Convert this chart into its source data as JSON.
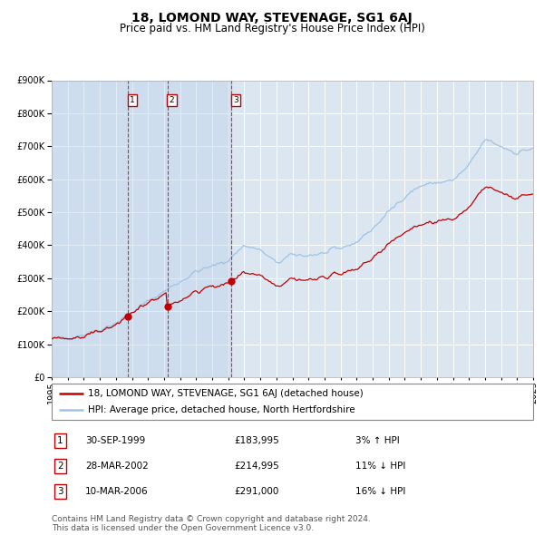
{
  "title": "18, LOMOND WAY, STEVENAGE, SG1 6AJ",
  "subtitle": "Price paid vs. HM Land Registry's House Price Index (HPI)",
  "legend_line1": "18, LOMOND WAY, STEVENAGE, SG1 6AJ (detached house)",
  "legend_line2": "HPI: Average price, detached house, North Hertfordshire",
  "footer1": "Contains HM Land Registry data © Crown copyright and database right 2024.",
  "footer2": "This data is licensed under the Open Government Licence v3.0.",
  "transactions": [
    {
      "num": 1,
      "date": "30-SEP-1999",
      "price": 183995,
      "pct": "3%",
      "dir": "↑"
    },
    {
      "num": 2,
      "date": "28-MAR-2002",
      "price": 214995,
      "pct": "11%",
      "dir": "↓"
    },
    {
      "num": 3,
      "date": "10-MAR-2006",
      "price": 291000,
      "pct": "16%",
      "dir": "↓"
    }
  ],
  "transaction_dates_decimal": [
    1999.75,
    2002.23,
    2006.19
  ],
  "transaction_prices": [
    183995,
    214995,
    291000
  ],
  "vline_dates": [
    1999.75,
    2002.23,
    2006.19
  ],
  "start_year": 1995,
  "end_year": 2025,
  "ylim": [
    0,
    900000
  ],
  "yticks": [
    0,
    100000,
    200000,
    300000,
    400000,
    500000,
    600000,
    700000,
    800000,
    900000
  ],
  "background_color": "#ffffff",
  "plot_bg_color": "#dce6f1",
  "grid_color": "#ffffff",
  "red_line_color": "#c00000",
  "blue_line_color": "#9dc3e6",
  "vline_color": "#ff0000",
  "dot_color": "#c00000",
  "box_color": "#c00000",
  "title_fontsize": 10,
  "subtitle_fontsize": 8.5,
  "tick_fontsize": 7,
  "legend_fontsize": 7.5,
  "table_fontsize": 7.5,
  "footer_fontsize": 6.5
}
